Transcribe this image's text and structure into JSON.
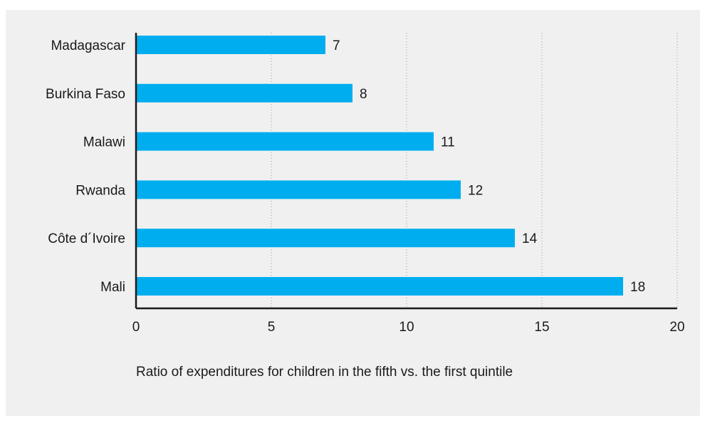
{
  "chart_data": {
    "type": "bar",
    "orientation": "horizontal",
    "categories": [
      "Madagascar",
      "Burkina Faso",
      "Malawi",
      "Rwanda",
      "Côte d´Ivoire",
      "Mali"
    ],
    "values": [
      7,
      8,
      11,
      12,
      14,
      18
    ],
    "value_labels": [
      "7",
      "8",
      "11",
      "12",
      "14",
      "18"
    ],
    "xlabel": "Ratio of expenditures for children in the fifth vs. the first quintile",
    "ylabel": "",
    "xlim": [
      0,
      20
    ],
    "xticks": [
      0,
      5,
      10,
      15,
      20
    ],
    "xtick_labels": [
      "0",
      "5",
      "10",
      "15",
      "20"
    ],
    "grid": "vertical dotted",
    "legend": "none",
    "colors": {
      "bar": "#00aeef",
      "background": "#f0f0f0",
      "axis": "#1a1a1a",
      "grid": "#9a9a9a"
    }
  }
}
